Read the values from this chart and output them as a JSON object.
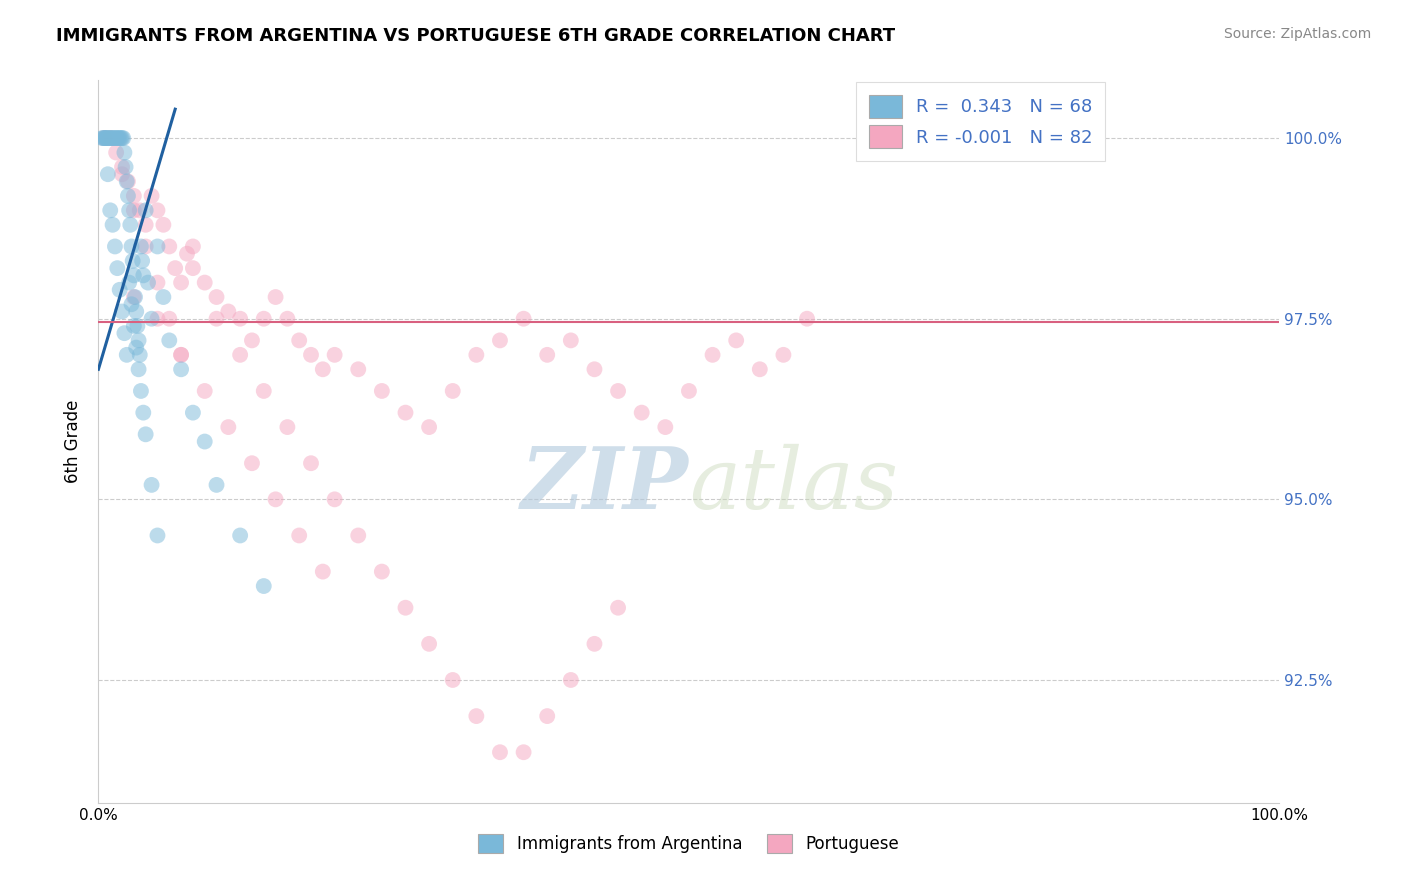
{
  "title": "IMMIGRANTS FROM ARGENTINA VS PORTUGUESE 6TH GRADE CORRELATION CHART",
  "source_text": "Source: ZipAtlas.com",
  "ylabel": "6th Grade",
  "legend_blue_r": "R =  0.343",
  "legend_blue_n": "N = 68",
  "legend_pink_r": "R = -0.001",
  "legend_pink_n": "N = 82",
  "legend_label_blue": "Immigrants from Argentina",
  "legend_label_pink": "Portuguese",
  "watermark_zip": "ZIP",
  "watermark_atlas": "atlas",
  "x_min": 0.0,
  "x_max": 100.0,
  "y_min": 90.8,
  "y_max": 100.8,
  "right_ytick_labels": [
    "92.5%",
    "95.0%",
    "97.5%",
    "100.0%"
  ],
  "right_ytick_values": [
    92.5,
    95.0,
    97.5,
    100.0
  ],
  "blue_color": "#7ab8d9",
  "pink_color": "#f4a7c0",
  "blue_line_color": "#2060a0",
  "pink_line_color": "#d96080",
  "blue_scatter_x": [
    0.3,
    0.5,
    0.6,
    0.7,
    0.8,
    0.9,
    1.0,
    1.1,
    1.2,
    1.3,
    1.4,
    1.5,
    1.6,
    1.7,
    1.8,
    1.9,
    2.0,
    2.1,
    2.2,
    2.3,
    2.4,
    2.5,
    2.6,
    2.7,
    2.8,
    2.9,
    3.0,
    3.1,
    3.2,
    3.3,
    3.4,
    3.5,
    3.6,
    3.7,
    3.8,
    4.0,
    4.2,
    4.5,
    5.0,
    5.5,
    6.0,
    7.0,
    8.0,
    9.0,
    10.0,
    12.0,
    14.0,
    0.4,
    0.6,
    0.8,
    1.0,
    1.2,
    1.4,
    1.6,
    1.8,
    2.0,
    2.2,
    2.4,
    2.6,
    2.8,
    3.0,
    3.2,
    3.4,
    3.6,
    3.8,
    4.0,
    4.5,
    5.0
  ],
  "blue_scatter_y": [
    100.0,
    100.0,
    100.0,
    100.0,
    100.0,
    100.0,
    100.0,
    100.0,
    100.0,
    100.0,
    100.0,
    100.0,
    100.0,
    100.0,
    100.0,
    100.0,
    100.0,
    100.0,
    99.8,
    99.6,
    99.4,
    99.2,
    99.0,
    98.8,
    98.5,
    98.3,
    98.1,
    97.8,
    97.6,
    97.4,
    97.2,
    97.0,
    98.5,
    98.3,
    98.1,
    99.0,
    98.0,
    97.5,
    98.5,
    97.8,
    97.2,
    96.8,
    96.2,
    95.8,
    95.2,
    94.5,
    93.8,
    100.0,
    100.0,
    99.5,
    99.0,
    98.8,
    98.5,
    98.2,
    97.9,
    97.6,
    97.3,
    97.0,
    98.0,
    97.7,
    97.4,
    97.1,
    96.8,
    96.5,
    96.2,
    95.9,
    95.2,
    94.5
  ],
  "pink_scatter_x": [
    0.5,
    1.0,
    1.5,
    2.0,
    2.5,
    3.0,
    3.5,
    4.0,
    4.5,
    5.0,
    5.5,
    6.0,
    6.5,
    7.0,
    7.5,
    8.0,
    9.0,
    10.0,
    11.0,
    12.0,
    13.0,
    14.0,
    15.0,
    16.0,
    17.0,
    18.0,
    19.0,
    20.0,
    22.0,
    24.0,
    26.0,
    28.0,
    30.0,
    32.0,
    34.0,
    36.0,
    38.0,
    40.0,
    42.0,
    44.0,
    46.0,
    48.0,
    50.0,
    52.0,
    54.0,
    56.0,
    58.0,
    60.0,
    2.0,
    3.0,
    4.0,
    5.0,
    6.0,
    7.0,
    8.0,
    10.0,
    12.0,
    14.0,
    16.0,
    18.0,
    20.0,
    22.0,
    24.0,
    26.0,
    28.0,
    30.0,
    32.0,
    34.0,
    36.0,
    38.0,
    40.0,
    42.0,
    44.0,
    3.0,
    5.0,
    7.0,
    9.0,
    11.0,
    13.0,
    15.0,
    17.0,
    19.0
  ],
  "pink_scatter_y": [
    100.0,
    100.0,
    99.8,
    99.6,
    99.4,
    99.2,
    99.0,
    98.8,
    99.2,
    99.0,
    98.8,
    98.5,
    98.2,
    98.0,
    98.4,
    98.2,
    98.0,
    97.8,
    97.6,
    97.5,
    97.2,
    97.5,
    97.8,
    97.5,
    97.2,
    97.0,
    96.8,
    97.0,
    96.8,
    96.5,
    96.2,
    96.0,
    96.5,
    97.0,
    97.2,
    97.5,
    97.0,
    97.2,
    96.8,
    96.5,
    96.2,
    96.0,
    96.5,
    97.0,
    97.2,
    96.8,
    97.0,
    97.5,
    99.5,
    99.0,
    98.5,
    98.0,
    97.5,
    97.0,
    98.5,
    97.5,
    97.0,
    96.5,
    96.0,
    95.5,
    95.0,
    94.5,
    94.0,
    93.5,
    93.0,
    92.5,
    92.0,
    91.5,
    91.5,
    92.0,
    92.5,
    93.0,
    93.5,
    97.8,
    97.5,
    97.0,
    96.5,
    96.0,
    95.5,
    95.0,
    94.5,
    94.0
  ],
  "blue_trend_x": [
    0.0,
    6.5
  ],
  "blue_trend_y": [
    96.8,
    100.4
  ],
  "pink_trend_y_val": 97.45,
  "dpi": 100,
  "figsize": [
    14.06,
    8.92
  ]
}
